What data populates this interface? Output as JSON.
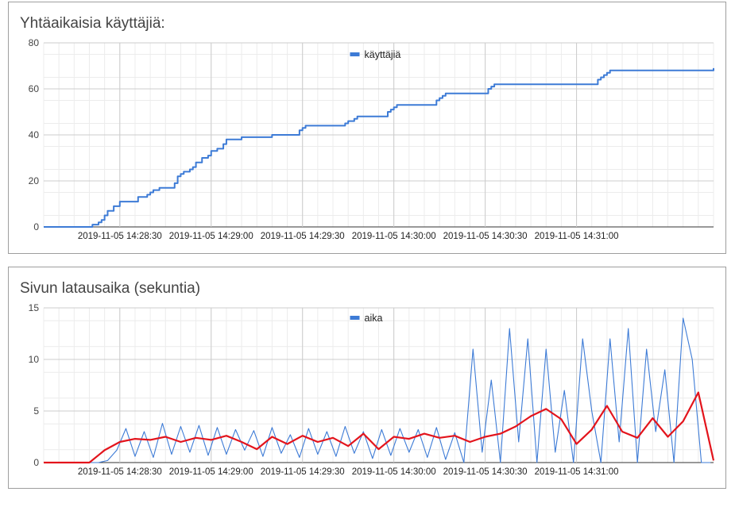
{
  "chart_data": [
    {
      "type": "line",
      "title": "Yhtäaikaisia käyttäjiä:",
      "xlabel": "",
      "ylabel": "",
      "ylim": [
        0,
        80
      ],
      "y_ticks": [
        "0",
        "20",
        "40",
        "60",
        "80"
      ],
      "x_range": [
        "14:28:05",
        "14:31:45"
      ],
      "x_ticks": [
        "2019-11-05 14:28:30",
        "2019-11-05 14:29:00",
        "2019-11-05 14:29:30",
        "2019-11-05 14:30:00",
        "2019-11-05 14:30:30",
        "2019-11-05 14:31:00"
      ],
      "grid": true,
      "legend": "top-center",
      "series": [
        {
          "name": "käyttäjiä",
          "color": "#3d7bd6",
          "x": [
            "14:28:05",
            "14:28:20",
            "14:28:21",
            "14:28:23",
            "14:28:24",
            "14:28:25",
            "14:28:26",
            "14:28:28",
            "14:28:30",
            "14:28:33",
            "14:28:36",
            "14:28:37",
            "14:28:39",
            "14:28:40",
            "14:28:41",
            "14:28:43",
            "14:28:45",
            "14:28:48",
            "14:28:49",
            "14:28:50",
            "14:28:51",
            "14:28:53",
            "14:28:54",
            "14:28:55",
            "14:28:57",
            "14:28:59",
            "14:29:00",
            "14:29:02",
            "14:29:04",
            "14:29:05",
            "14:29:10",
            "14:29:20",
            "14:29:28",
            "14:29:29",
            "14:29:30",
            "14:29:31",
            "14:29:44",
            "14:29:45",
            "14:29:47",
            "14:29:48",
            "14:29:58",
            "14:29:59",
            "14:30:00",
            "14:30:01",
            "14:30:14",
            "14:30:15",
            "14:30:16",
            "14:30:17",
            "14:30:31",
            "14:30:32",
            "14:30:33",
            "14:31:07",
            "14:31:08",
            "14:31:09",
            "14:31:10",
            "14:31:11",
            "14:31:45"
          ],
          "y": [
            0,
            0,
            1,
            2,
            3,
            5,
            7,
            9,
            11,
            11,
            13,
            13,
            14,
            15,
            16,
            17,
            17,
            19,
            22,
            23,
            24,
            25,
            26,
            28,
            30,
            31,
            33,
            34,
            36,
            38,
            39,
            40,
            40,
            42,
            43,
            44,
            45,
            46,
            47,
            48,
            50,
            51,
            52,
            53,
            55,
            56,
            57,
            58,
            60,
            61,
            62,
            64,
            65,
            66,
            67,
            68,
            69
          ]
        }
      ]
    },
    {
      "type": "line",
      "title": "Sivun latausaika (sekuntia)",
      "xlabel": "",
      "ylabel": "",
      "ylim": [
        0,
        15
      ],
      "y_ticks": [
        "0",
        "5",
        "10",
        "15"
      ],
      "x_range": [
        "14:28:05",
        "14:31:45"
      ],
      "x_ticks": [
        "2019-11-05 14:28:30",
        "2019-11-05 14:29:00",
        "2019-11-05 14:29:30",
        "2019-11-05 14:30:00",
        "2019-11-05 14:30:30",
        "2019-11-05 14:31:00"
      ],
      "grid": true,
      "legend": "top-center",
      "series": [
        {
          "name": "aika",
          "color": "#3d7bd6",
          "x": [
            "14:28:05",
            "14:28:08",
            "14:28:11",
            "14:28:14",
            "14:28:17",
            "14:28:20",
            "14:28:23",
            "14:28:26",
            "14:28:29",
            "14:28:32",
            "14:28:35",
            "14:28:38",
            "14:28:41",
            "14:28:44",
            "14:28:47",
            "14:28:50",
            "14:28:53",
            "14:28:56",
            "14:28:59",
            "14:29:02",
            "14:29:05",
            "14:29:08",
            "14:29:11",
            "14:29:14",
            "14:29:17",
            "14:29:20",
            "14:29:23",
            "14:29:26",
            "14:29:29",
            "14:29:32",
            "14:29:35",
            "14:29:38",
            "14:29:41",
            "14:29:44",
            "14:29:47",
            "14:29:50",
            "14:29:53",
            "14:29:56",
            "14:29:59",
            "14:30:02",
            "14:30:05",
            "14:30:08",
            "14:30:11",
            "14:30:14",
            "14:30:17",
            "14:30:20",
            "14:30:23",
            "14:30:26",
            "14:30:29",
            "14:30:32",
            "14:30:35",
            "14:30:38",
            "14:30:41",
            "14:30:44",
            "14:30:47",
            "14:30:50",
            "14:30:53",
            "14:30:56",
            "14:30:59",
            "14:31:02",
            "14:31:05",
            "14:31:08",
            "14:31:11",
            "14:31:14",
            "14:31:17",
            "14:31:20",
            "14:31:23",
            "14:31:26",
            "14:31:29",
            "14:31:32",
            "14:31:35",
            "14:31:38",
            "14:31:41",
            "14:31:44"
          ],
          "y": [
            0,
            0,
            0,
            0,
            0,
            0,
            0,
            0.2,
            1.2,
            3.3,
            0.6,
            3.0,
            0.5,
            3.8,
            0.8,
            3.5,
            1.0,
            3.6,
            0.7,
            3.4,
            0.8,
            3.2,
            1.2,
            3.1,
            0.6,
            3.4,
            0.9,
            2.7,
            0.5,
            3.3,
            0.8,
            3.0,
            0.6,
            3.5,
            0.9,
            3.0,
            0.4,
            3.2,
            0.7,
            3.3,
            1.0,
            3.2,
            0.5,
            3.4,
            0.3,
            2.9,
            0,
            11,
            1,
            8,
            0,
            13,
            2,
            12,
            0,
            11,
            1,
            7,
            0,
            12,
            5,
            0,
            12,
            2,
            13,
            0,
            11,
            3,
            9,
            0,
            14,
            10,
            0,
            0
          ]
        },
        {
          "name": "",
          "color": "#e3141c",
          "x": [
            "14:28:05",
            "14:28:20",
            "14:28:25",
            "14:28:30",
            "14:28:35",
            "14:28:40",
            "14:28:45",
            "14:28:50",
            "14:28:55",
            "14:29:00",
            "14:29:05",
            "14:29:10",
            "14:29:15",
            "14:29:20",
            "14:29:25",
            "14:29:30",
            "14:29:35",
            "14:29:40",
            "14:29:45",
            "14:29:50",
            "14:29:55",
            "14:30:00",
            "14:30:05",
            "14:30:10",
            "14:30:15",
            "14:30:20",
            "14:30:25",
            "14:30:30",
            "14:30:35",
            "14:30:40",
            "14:30:45",
            "14:30:50",
            "14:30:55",
            "14:31:00",
            "14:31:05",
            "14:31:10",
            "14:31:15",
            "14:31:20",
            "14:31:25",
            "14:31:30",
            "14:31:35",
            "14:31:40",
            "14:31:45"
          ],
          "y": [
            0,
            0,
            1.2,
            2.0,
            2.3,
            2.2,
            2.5,
            2.0,
            2.4,
            2.2,
            2.6,
            2.0,
            1.3,
            2.5,
            1.8,
            2.6,
            2.0,
            2.4,
            1.6,
            2.8,
            1.3,
            2.5,
            2.3,
            2.8,
            2.4,
            2.6,
            2.0,
            2.5,
            2.8,
            3.5,
            4.5,
            5.2,
            4.2,
            1.8,
            3.2,
            5.5,
            3.0,
            2.4,
            4.3,
            2.5,
            4.0,
            6.8,
            0.2
          ]
        }
      ]
    }
  ]
}
